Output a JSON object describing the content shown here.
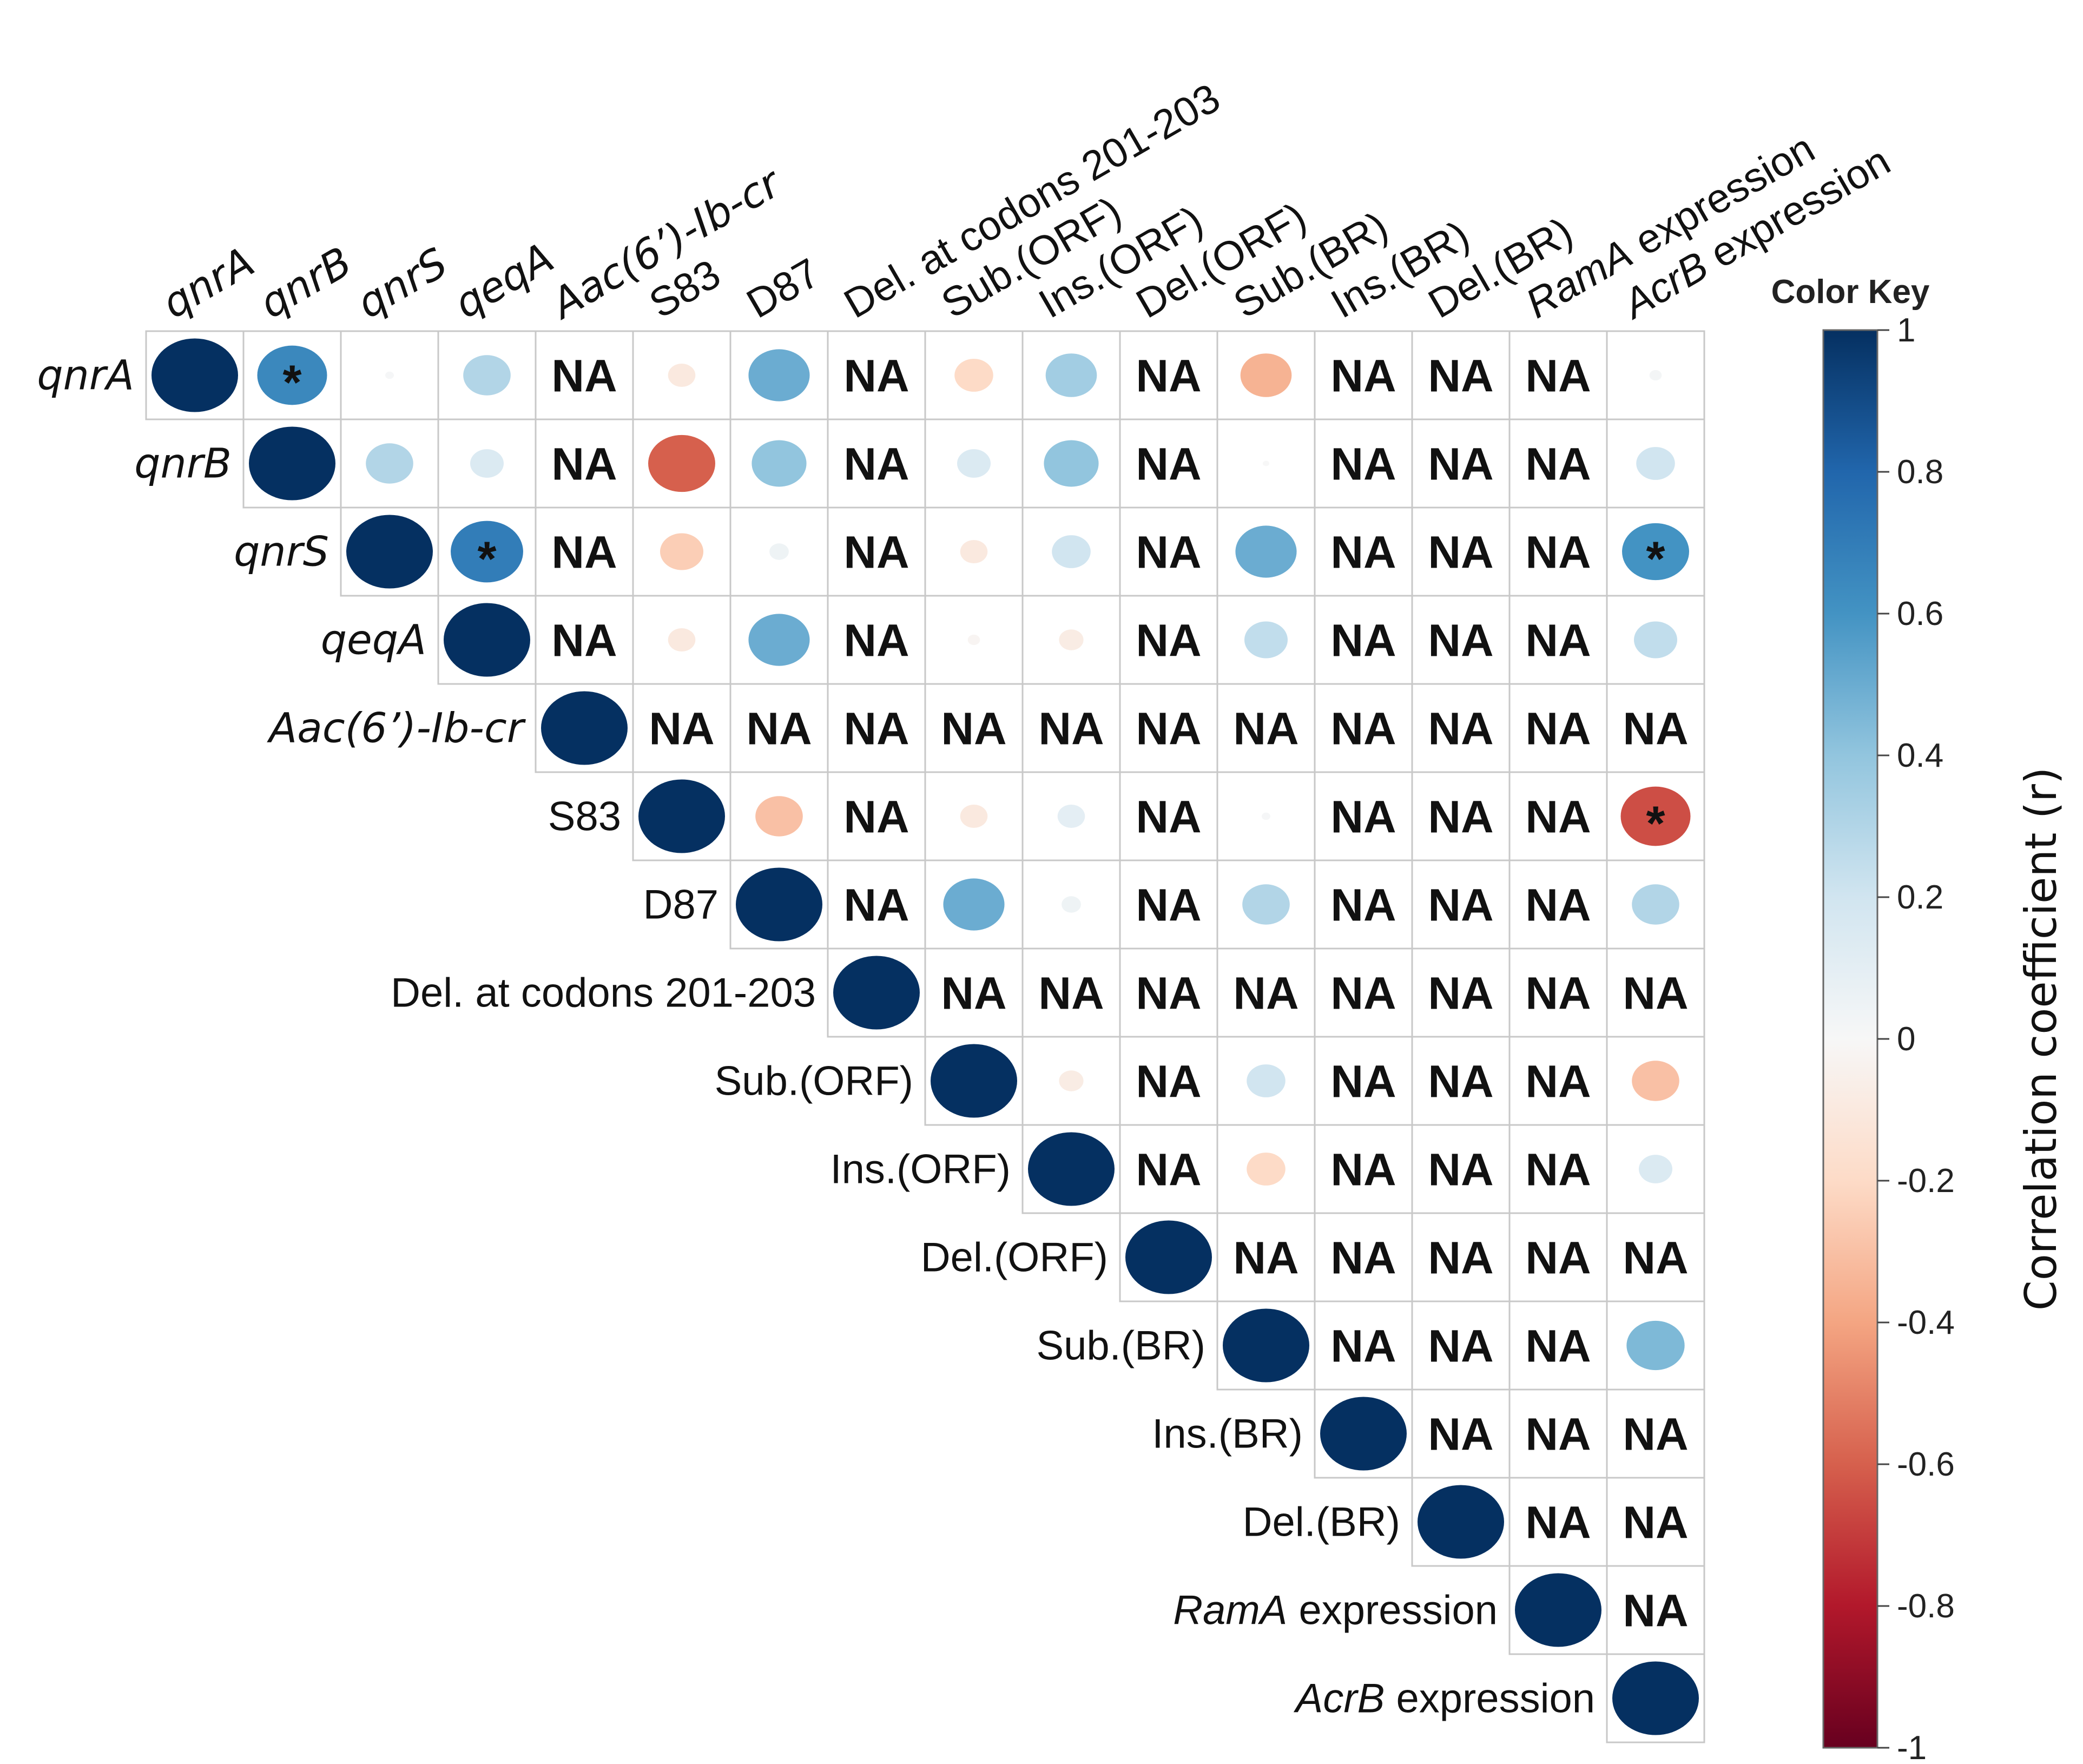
{
  "chart_data": {
    "type": "heatmap",
    "subtype": "correlation-matrix-upper-triangle",
    "variables": [
      {
        "label": "qnrA",
        "italic": true
      },
      {
        "label": "qnrB",
        "italic": true
      },
      {
        "label": "qnrS",
        "italic": true
      },
      {
        "label": "qeqA",
        "italic": true
      },
      {
        "label": "Aac(6’)-Ib-cr",
        "italic": true
      },
      {
        "label": "S83",
        "italic": false
      },
      {
        "label": "D87",
        "italic": false
      },
      {
        "label": "Del. at codons 201-203",
        "italic": false
      },
      {
        "label": "Sub.(ORF)",
        "italic": false
      },
      {
        "label": "Ins.(ORF)",
        "italic": false
      },
      {
        "label": "Del.(ORF)",
        "italic": false
      },
      {
        "label": "Sub.(BR)",
        "italic": false
      },
      {
        "label": "Ins.(BR)",
        "italic": false
      },
      {
        "label": "Del.(BR)",
        "italic": false
      },
      {
        "label": "RamA expression",
        "italic_part": "RamA",
        "rest": " expression"
      },
      {
        "label": "AcrB expression",
        "italic_part": "AcrB",
        "rest": " expression"
      }
    ],
    "matrix": [
      [
        1,
        0.65,
        0.01,
        0.3,
        null,
        -0.1,
        0.5,
        null,
        -0.2,
        0.35,
        null,
        -0.35,
        null,
        null,
        null,
        0.02
      ],
      [
        null,
        1,
        0.3,
        0.15,
        null,
        -0.6,
        0.4,
        null,
        0.15,
        0.4,
        null,
        0.0,
        null,
        null,
        null,
        0.2
      ],
      [
        null,
        null,
        1,
        0.7,
        null,
        -0.25,
        0.05,
        null,
        -0.1,
        0.2,
        null,
        0.5,
        null,
        null,
        null,
        0.6
      ],
      [
        null,
        null,
        null,
        1,
        null,
        -0.1,
        0.5,
        null,
        -0.02,
        -0.08,
        null,
        0.25,
        null,
        null,
        null,
        0.25
      ],
      [
        null,
        null,
        null,
        null,
        1,
        null,
        null,
        null,
        null,
        null,
        null,
        null,
        null,
        null,
        null,
        null
      ],
      [
        null,
        null,
        null,
        null,
        null,
        1,
        -0.3,
        null,
        -0.1,
        0.1,
        null,
        0.01,
        null,
        null,
        null,
        -0.65
      ],
      [
        null,
        null,
        null,
        null,
        null,
        null,
        1,
        null,
        0.5,
        0.05,
        null,
        0.3,
        null,
        null,
        null,
        0.3
      ],
      [
        null,
        null,
        null,
        null,
        null,
        null,
        null,
        1,
        null,
        null,
        null,
        null,
        null,
        null,
        null,
        null
      ],
      [
        null,
        null,
        null,
        null,
        null,
        null,
        null,
        null,
        1,
        -0.08,
        null,
        0.2,
        null,
        null,
        null,
        -0.3
      ],
      [
        null,
        null,
        null,
        null,
        null,
        null,
        null,
        null,
        null,
        1,
        null,
        -0.2,
        null,
        null,
        null,
        0.15
      ],
      [
        null,
        null,
        null,
        null,
        null,
        null,
        null,
        null,
        null,
        null,
        1,
        null,
        null,
        null,
        null,
        null
      ],
      [
        null,
        null,
        null,
        null,
        null,
        null,
        null,
        null,
        null,
        null,
        null,
        1,
        null,
        null,
        null,
        0.45
      ],
      [
        null,
        null,
        null,
        null,
        null,
        null,
        null,
        null,
        null,
        null,
        null,
        null,
        1,
        null,
        null,
        null
      ],
      [
        null,
        null,
        null,
        null,
        null,
        null,
        null,
        null,
        null,
        null,
        null,
        null,
        null,
        1,
        null,
        null
      ],
      [
        null,
        null,
        null,
        null,
        null,
        null,
        null,
        null,
        null,
        null,
        null,
        null,
        null,
        null,
        1,
        null
      ],
      [
        null,
        null,
        null,
        null,
        null,
        null,
        null,
        null,
        null,
        null,
        null,
        null,
        null,
        null,
        null,
        1
      ]
    ],
    "significant": [
      [
        0,
        1
      ],
      [
        2,
        3
      ],
      [
        2,
        15
      ],
      [
        5,
        15
      ]
    ],
    "na_label": "NA",
    "significance_marker": "*",
    "color_key": {
      "title": "Color Key",
      "axis_title": "Correlation coefficient (r)",
      "range": [
        -1,
        1
      ],
      "ticks": [
        "1",
        "0.8",
        "0.6",
        "0.4",
        "0.2",
        "0",
        "-0.2",
        "-0.4",
        "-0.6",
        "-0.8",
        "-1"
      ],
      "tick_values": [
        1,
        0.8,
        0.6,
        0.4,
        0.2,
        0,
        -0.2,
        -0.4,
        -0.6,
        -0.8,
        -1
      ],
      "colors": {
        "strong_positive": "#053061",
        "positive": "#2166ac",
        "mid_positive": "#4393c3",
        "light_positive": "#92c5de",
        "pale_positive": "#d1e5f0",
        "neutral": "#f7f7f7",
        "pale_negative": "#fddbc7",
        "light_negative": "#f4a582",
        "mid_negative": "#d6604d",
        "negative": "#b2182b",
        "strong_negative": "#67001f"
      }
    }
  }
}
